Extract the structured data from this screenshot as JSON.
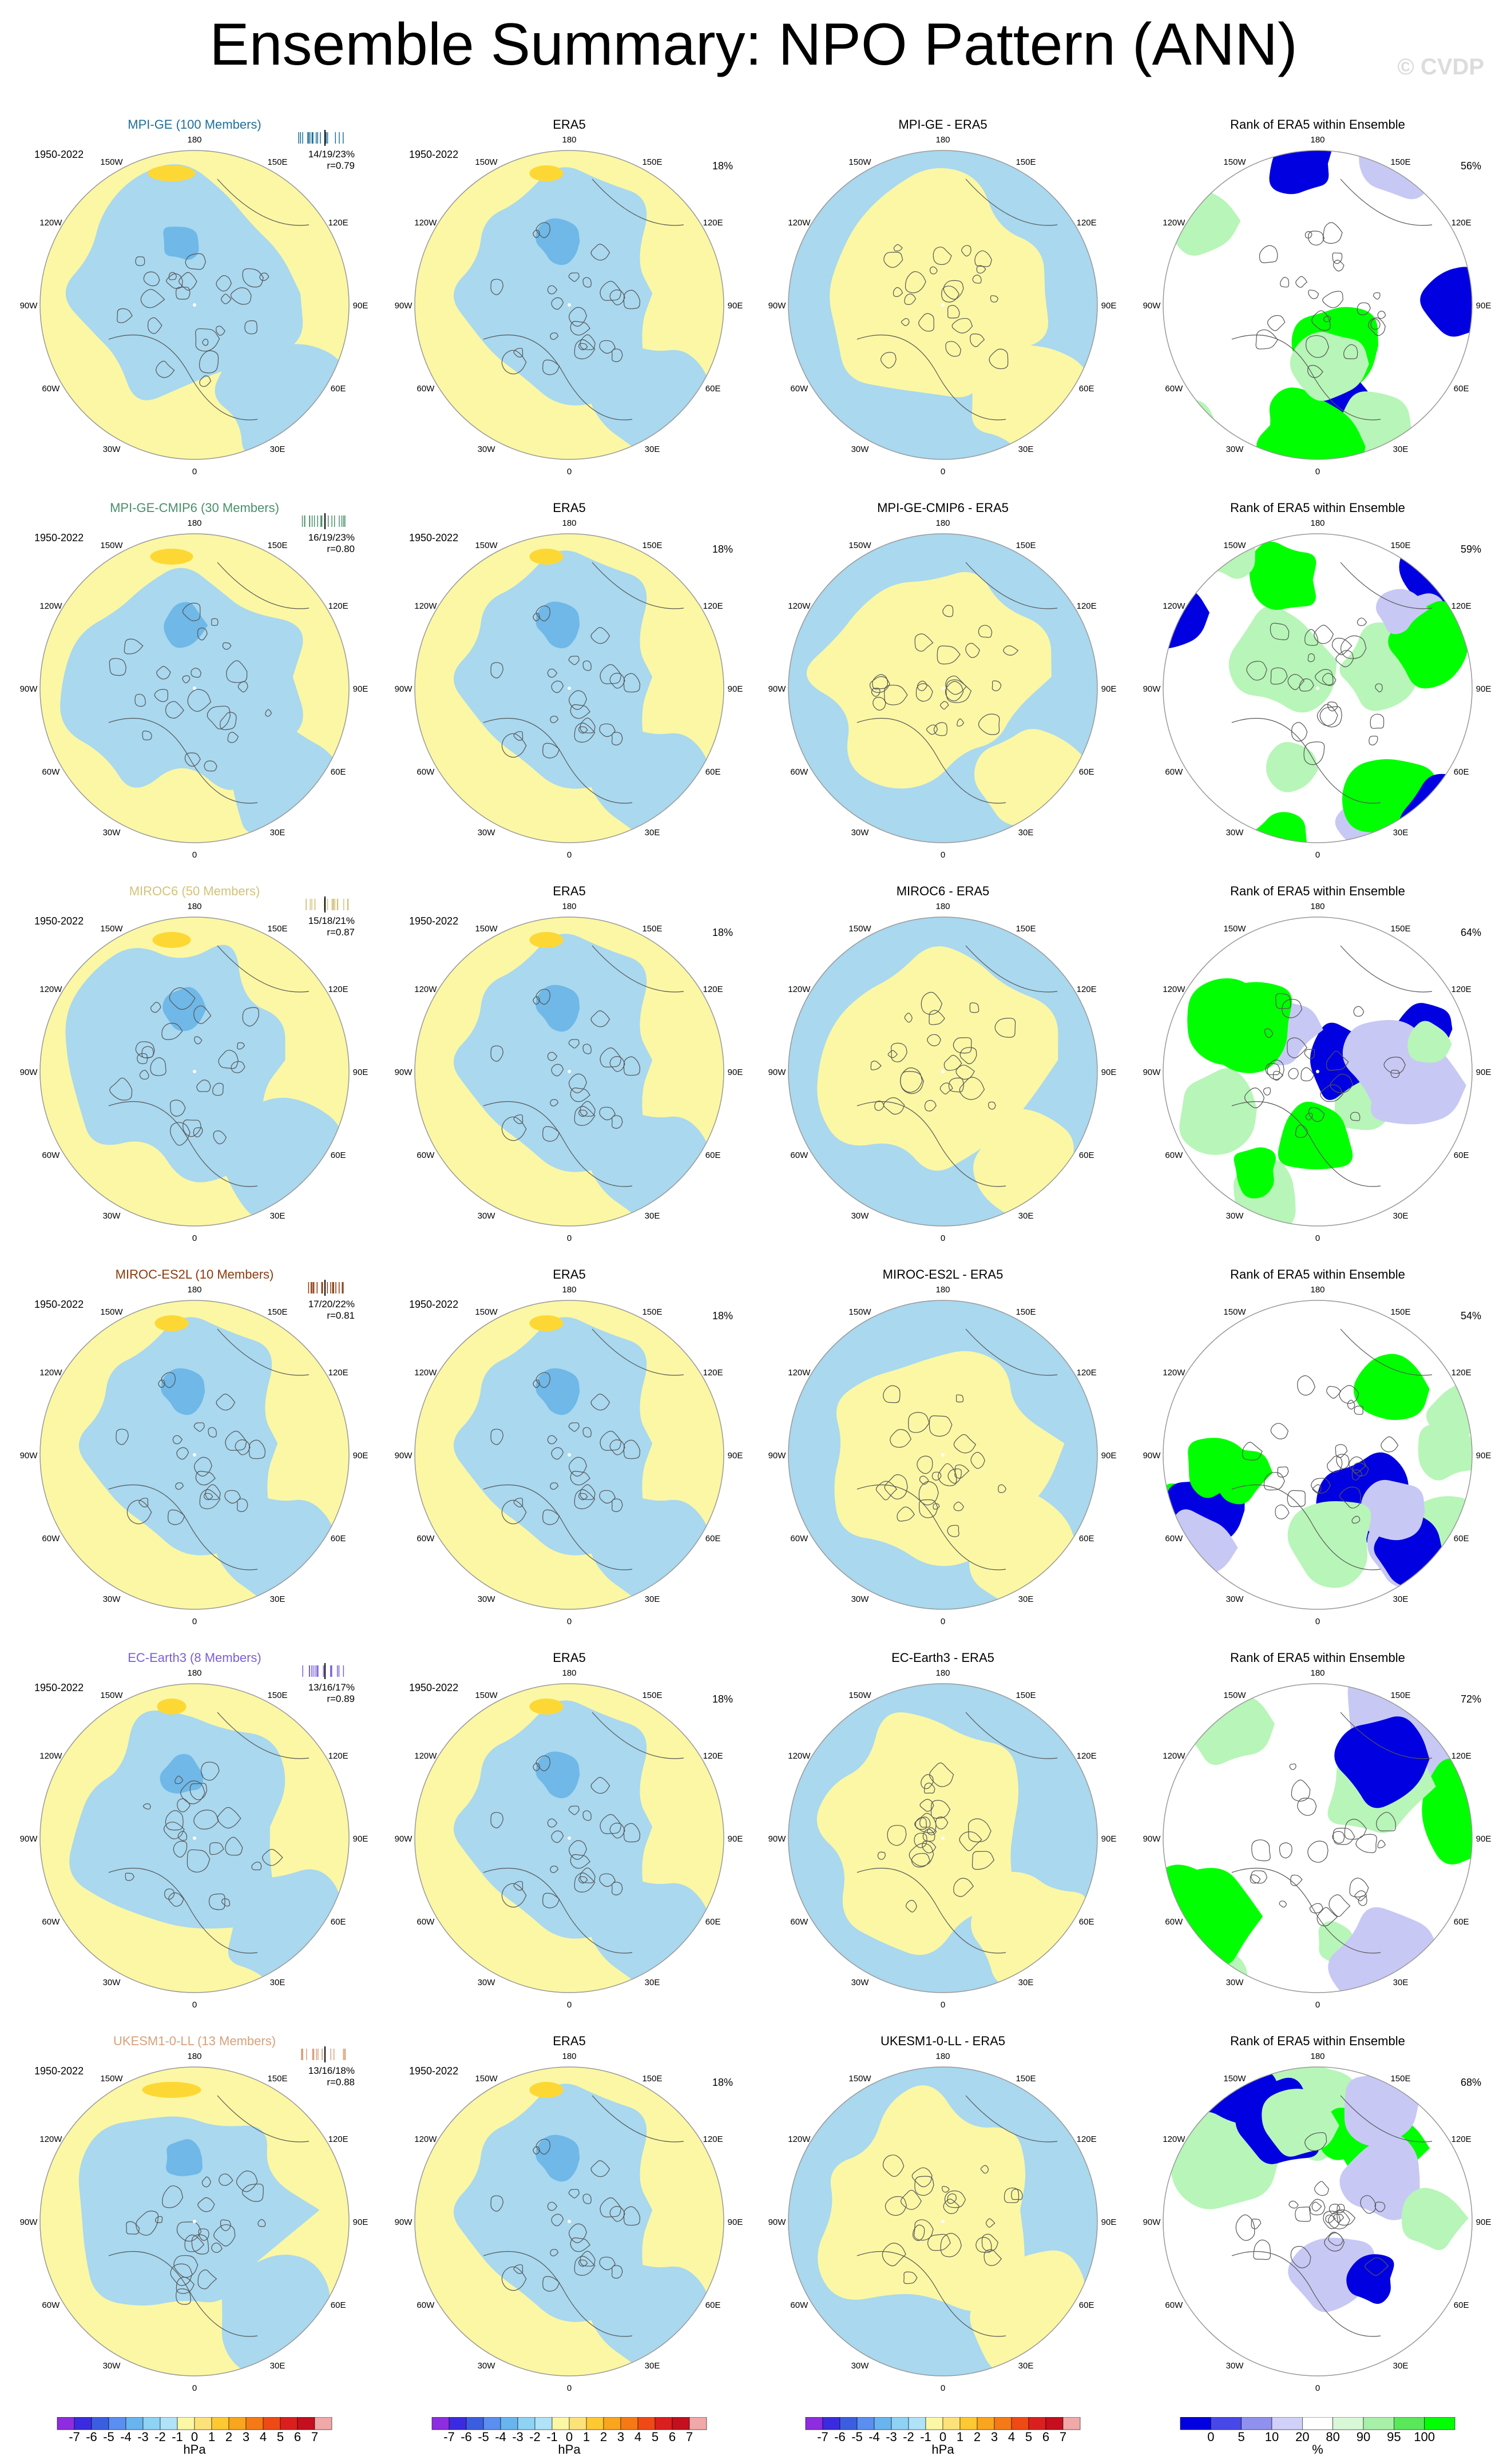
{
  "title": "Ensemble Summary: NPO Pattern (ANN)",
  "credit": "© CVDP",
  "period": "1950-2022",
  "era5_pct": "18%",
  "lon_labels": [
    "180",
    "150E",
    "120E",
    "90E",
    "60E",
    "30E",
    "0",
    "30W",
    "60W",
    "90W",
    "120W",
    "150W"
  ],
  "colors": {
    "neg_light": "#a9d8ef",
    "neg_mid": "#6fb8e8",
    "pos_light": "#fbf7a4",
    "pos_mid": "#fdd835",
    "rank_green": "#00ff00",
    "rank_light_green": "#b8f5b8",
    "rank_blue": "#0000e0",
    "rank_light_blue": "#c8c8f5",
    "model_colors": [
      "#1f6f9a",
      "#4a8f6b",
      "#d4c37a",
      "#8b3a0f",
      "#7a5fd6",
      "#d9a07a"
    ]
  },
  "rows": [
    {
      "model_title": "MPI-GE (100 Members)",
      "stats": "14/19/23%",
      "r": "r=0.79",
      "diff_title": "MPI-GE - ERA5",
      "rank_title": "Rank of ERA5 within Ensemble",
      "rank_pct": "56%"
    },
    {
      "model_title": "MPI-GE-CMIP6 (30 Members)",
      "stats": "16/19/23%",
      "r": "r=0.80",
      "diff_title": "MPI-GE-CMIP6 - ERA5",
      "rank_title": "Rank of ERA5 within Ensemble",
      "rank_pct": "59%"
    },
    {
      "model_title": "MIROC6 (50 Members)",
      "stats": "15/18/21%",
      "r": "r=0.87",
      "diff_title": "MIROC6 - ERA5",
      "rank_title": "Rank of ERA5 within Ensemble",
      "rank_pct": "64%"
    },
    {
      "model_title": "MIROC-ES2L (10 Members)",
      "stats": "17/20/22%",
      "r": "r=0.81",
      "diff_title": "MIROC-ES2L - ERA5",
      "rank_title": "Rank of ERA5 within Ensemble",
      "rank_pct": "54%"
    },
    {
      "model_title": "EC-Earth3 (8 Members)",
      "stats": "13/16/17%",
      "r": "r=0.89",
      "diff_title": "EC-Earth3 - ERA5",
      "rank_title": "Rank of ERA5 within Ensemble",
      "rank_pct": "72%"
    },
    {
      "model_title": "UKESM1-0-LL (13 Members)",
      "stats": "13/16/18%",
      "r": "r=0.88",
      "diff_title": "UKESM1-0-LL - ERA5",
      "rank_title": "Rank of ERA5 within Ensemble",
      "rank_pct": "68%"
    }
  ],
  "era5_title": "ERA5",
  "chart_data": [
    {
      "type": "heatmap",
      "description_type": "polar contour maps",
      "columns": [
        "model",
        "ERA5",
        "model - ERA5",
        "rank of ERA5"
      ]
    },
    {
      "type": "colorbar",
      "ticks": [
        "-7",
        "-6",
        "-5",
        "-4",
        "-3",
        "-2",
        "-1",
        "0",
        "1",
        "2",
        "3",
        "4",
        "5",
        "6",
        "7"
      ],
      "unit": "hPa",
      "colors": [
        "#8e2ce0",
        "#3b2be0",
        "#3b5ee0",
        "#5a8ef0",
        "#68b4ee",
        "#8ed2f4",
        "#b0e2f8",
        "#fbf7a4",
        "#fde27a",
        "#fdc933",
        "#f9a51e",
        "#f57a16",
        "#ef4a16",
        "#db1f1f",
        "#c40f1f",
        "#f0a8a8"
      ]
    },
    {
      "type": "colorbar",
      "ticks": [
        "0",
        "5",
        "10",
        "20",
        "80",
        "90",
        "95",
        "100"
      ],
      "unit": "%",
      "colors": [
        "#0000e0",
        "#4848e8",
        "#9090ee",
        "#d0d0f8",
        "#ffffff",
        "#d8f8d8",
        "#a8f0a8",
        "#5ae85a",
        "#00ff00"
      ]
    }
  ],
  "colorbar_pressure": {
    "ticks": [
      "-7",
      "-6",
      "-5",
      "-4",
      "-3",
      "-2",
      "-1",
      "0",
      "1",
      "2",
      "3",
      "4",
      "5",
      "6",
      "7"
    ],
    "unit": "hPa"
  },
  "colorbar_rank": {
    "ticks": [
      "0",
      "5",
      "10",
      "20",
      "80",
      "90",
      "95",
      "100"
    ],
    "unit": "%"
  }
}
